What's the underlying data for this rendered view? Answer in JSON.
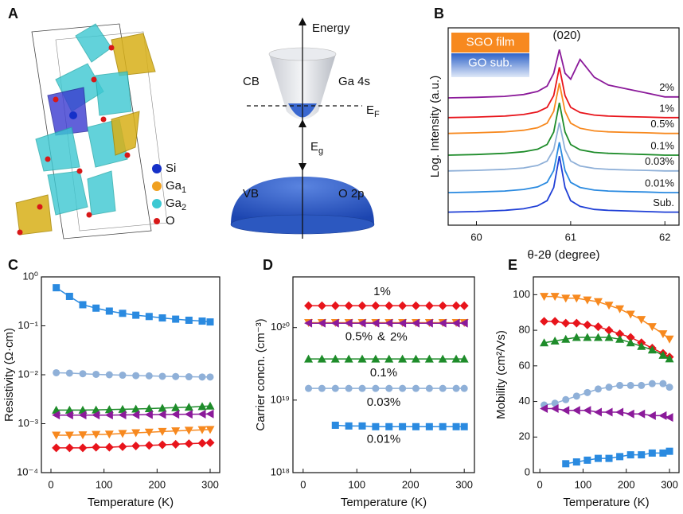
{
  "diagram": {
    "label": "A",
    "atoms": [
      {
        "text": "Si",
        "color": "#1530c8"
      },
      {
        "text": "Ga",
        "sub": "1",
        "color": "#f0a020"
      },
      {
        "text": "Ga",
        "sub": "2",
        "color": "#3cc8d2"
      },
      {
        "text": "O",
        "color": "#d81818"
      }
    ],
    "band": {
      "energy": "Energy",
      "cb": "CB",
      "cb_orbital": "Ga 4s",
      "fermi": {
        "text": "E",
        "sub": "F"
      },
      "gap": {
        "text": "E",
        "sub": "g"
      },
      "vb": "VB",
      "vb_orbital": "O 2p"
    }
  },
  "chart_data": [
    {
      "type": "line",
      "label": "B",
      "ylabel": "Log. Intensity (a.u.)",
      "xlabel": "θ-2θ (degree)",
      "annotation": "(020)",
      "legend": [
        {
          "name": "SGO film",
          "color": "#f7891f"
        },
        {
          "name": "GO sub.",
          "color": "#2f63c8"
        }
      ],
      "xlim": [
        59.7,
        62.15
      ],
      "xticks": [
        60,
        61,
        62
      ],
      "ylim": [
        0,
        10
      ],
      "x": [
        59.7,
        60.0,
        60.3,
        60.5,
        60.65,
        60.75,
        60.82,
        60.88,
        60.94,
        61.0,
        61.1,
        61.25,
        61.4,
        61.6,
        61.8,
        62.0,
        62.15
      ],
      "series": [
        {
          "name": "2%",
          "color": "#8b1a9a",
          "values": [
            6.45,
            6.48,
            6.53,
            6.62,
            6.78,
            7.05,
            7.7,
            8.9,
            7.7,
            7.4,
            8.4,
            7.5,
            7.1,
            6.9,
            6.7,
            6.5,
            6.5
          ]
        },
        {
          "name": "1%",
          "color": "#e8141b",
          "values": [
            5.45,
            5.48,
            5.53,
            5.61,
            5.74,
            5.97,
            6.57,
            8.0,
            6.57,
            5.97,
            5.71,
            5.58,
            5.53,
            5.5,
            5.48,
            5.45,
            5.45
          ]
        },
        {
          "name": "0.5%",
          "color": "#f7891f",
          "values": [
            4.65,
            4.68,
            4.73,
            4.81,
            4.94,
            5.17,
            5.77,
            7.2,
            5.77,
            5.17,
            4.91,
            4.78,
            4.73,
            4.7,
            4.68,
            4.65,
            4.65
          ]
        },
        {
          "name": "0.1%",
          "color": "#1e8c2a",
          "values": [
            3.55,
            3.58,
            3.64,
            3.72,
            3.85,
            4.09,
            4.72,
            6.2,
            4.72,
            4.09,
            3.82,
            3.69,
            3.64,
            3.61,
            3.58,
            3.55,
            3.55
          ]
        },
        {
          "name": "0.03%",
          "color": "#8fb0d8",
          "values": [
            2.75,
            2.78,
            2.83,
            2.9,
            3.03,
            3.25,
            3.83,
            5.2,
            3.83,
            3.25,
            3.0,
            2.88,
            2.83,
            2.8,
            2.78,
            2.75,
            2.75
          ]
        },
        {
          "name": "0.01%",
          "color": "#2a8ae0",
          "values": [
            1.65,
            1.68,
            1.73,
            1.81,
            1.94,
            2.17,
            2.77,
            4.2,
            2.77,
            2.17,
            1.91,
            1.78,
            1.73,
            1.7,
            1.68,
            1.65,
            1.65
          ]
        },
        {
          "name": "Sub.",
          "color": "#1f3fd6",
          "values": [
            0.66,
            0.69,
            0.75,
            0.83,
            0.98,
            1.24,
            1.91,
            3.5,
            1.91,
            1.24,
            0.95,
            0.8,
            0.75,
            0.72,
            0.69,
            0.66,
            0.66
          ]
        }
      ]
    },
    {
      "type": "line",
      "label": "C",
      "ylabel": "Resistivity (Ω·cm)",
      "xlabel": "Temperature (K)",
      "ylog": true,
      "xlim": [
        -18,
        318
      ],
      "xticks": [
        0,
        100,
        200,
        300
      ],
      "ylim": [
        0.0001,
        1
      ],
      "yticks": [
        {
          "value": 0.0001,
          "label": "10⁻⁴"
        },
        {
          "value": 0.001,
          "label": "10⁻³"
        },
        {
          "value": 0.01,
          "label": "10⁻²"
        },
        {
          "value": 0.1,
          "label": "10⁻¹"
        },
        {
          "value": 1,
          "label": "10⁰"
        }
      ],
      "x": [
        10,
        35,
        60,
        85,
        110,
        135,
        160,
        185,
        210,
        235,
        260,
        285,
        300
      ],
      "series": [
        {
          "color": "#2a8ae0",
          "marker": "square",
          "values": [
            0.6,
            0.4,
            0.27,
            0.23,
            0.2,
            0.18,
            0.165,
            0.155,
            0.145,
            0.137,
            0.13,
            0.125,
            0.12
          ]
        },
        {
          "color": "#8fb0d8",
          "marker": "circle",
          "values": [
            0.011,
            0.0108,
            0.0105,
            0.0102,
            0.01,
            0.0098,
            0.0096,
            0.0095,
            0.0093,
            0.0092,
            0.0091,
            0.009,
            0.009
          ]
        },
        {
          "color": "#1e8c2a",
          "marker": "up",
          "values": [
            0.0019,
            0.0019,
            0.0019,
            0.00192,
            0.00194,
            0.00197,
            0.002,
            0.00204,
            0.00208,
            0.00213,
            0.00218,
            0.00225,
            0.0023
          ]
        },
        {
          "color": "#8b1a9a",
          "marker": "left",
          "values": [
            0.0015,
            0.0015,
            0.0015,
            0.0015,
            0.0015,
            0.00151,
            0.00152,
            0.00153,
            0.00154,
            0.00155,
            0.00156,
            0.00157,
            0.00158
          ]
        },
        {
          "color": "#f7891f",
          "marker": "down",
          "values": [
            0.00058,
            0.00058,
            0.00059,
            0.0006,
            0.00061,
            0.00063,
            0.00065,
            0.00067,
            0.00069,
            0.00071,
            0.00073,
            0.00075,
            0.00076
          ]
        },
        {
          "color": "#e8141b",
          "marker": "diamond",
          "values": [
            0.00032,
            0.00032,
            0.00032,
            0.00033,
            0.00033,
            0.00034,
            0.00035,
            0.00036,
            0.00037,
            0.00038,
            0.00039,
            0.0004,
            0.00041
          ]
        }
      ]
    },
    {
      "type": "line",
      "label": "D",
      "ylabel": "Carrier concn. (cm⁻³)",
      "xlabel": "Temperature (K)",
      "ylog": true,
      "annotation": "&",
      "xlim": [
        -19,
        319
      ],
      "xticks": [
        0,
        100,
        200,
        300
      ],
      "ylim": [
        1e+18,
        5e+20
      ],
      "yticks": [
        {
          "value": 1e+18,
          "label": "10¹⁸"
        },
        {
          "value": 1e+19,
          "label": "10¹⁹"
        },
        {
          "value": 1e+20,
          "label": "10²⁰"
        }
      ],
      "x": [
        10,
        35,
        60,
        85,
        110,
        135,
        160,
        185,
        210,
        235,
        260,
        285,
        300
      ],
      "series": [
        {
          "name": "1%",
          "color": "#e8141b",
          "marker": "diamond",
          "values": [
            2e+20,
            2e+20,
            2e+20,
            2e+20,
            2e+20,
            2e+20,
            2e+20,
            2e+20,
            2e+20,
            2e+20,
            2e+20,
            2e+20,
            2e+20
          ]
        },
        {
          "name": "0.5%",
          "color": "#f7891f",
          "marker": "down",
          "values": [
            1.17e+20,
            1.17e+20,
            1.17e+20,
            1.17e+20,
            1.17e+20,
            1.17e+20,
            1.17e+20,
            1.17e+20,
            1.17e+20,
            1.17e+20,
            1.17e+20,
            1.17e+20,
            1.17e+20
          ]
        },
        {
          "name": "2%",
          "color": "#8b1a9a",
          "marker": "left",
          "values": [
            1.15e+20,
            1.15e+20,
            1.15e+20,
            1.15e+20,
            1.15e+20,
            1.15e+20,
            1.15e+20,
            1.15e+20,
            1.15e+20,
            1.15e+20,
            1.15e+20,
            1.15e+20,
            1.15e+20
          ]
        },
        {
          "name": "0.1%",
          "color": "#1e8c2a",
          "marker": "up",
          "values": [
            3.7e+19,
            3.7e+19,
            3.7e+19,
            3.7e+19,
            3.7e+19,
            3.7e+19,
            3.7e+19,
            3.7e+19,
            3.7e+19,
            3.7e+19,
            3.7e+19,
            3.7e+19,
            3.7e+19
          ]
        },
        {
          "name": "0.03%",
          "color": "#8fb0d8",
          "marker": "circle",
          "values": [
            1.45e+19,
            1.45e+19,
            1.45e+19,
            1.45e+19,
            1.45e+19,
            1.45e+19,
            1.45e+19,
            1.45e+19,
            1.45e+19,
            1.45e+19,
            1.45e+19,
            1.45e+19,
            1.45e+19
          ]
        },
        {
          "name": "0.01%",
          "color": "#2a8ae0",
          "marker": "square",
          "values": [
            null,
            null,
            4.5e+18,
            4.4e+18,
            4.4e+18,
            4.3e+18,
            4.3e+18,
            4.3e+18,
            4.3e+18,
            4.3e+18,
            4.3e+18,
            4.3e+18,
            4.3e+18
          ]
        }
      ]
    },
    {
      "type": "line",
      "label": "E",
      "ylabel": "Mobility (cm²/Vs)",
      "xlabel": "Temperature (K)",
      "xlim": [
        -15,
        322
      ],
      "xticks": [
        0,
        100,
        200,
        300
      ],
      "ylim": [
        0,
        110
      ],
      "yticks": [
        0,
        20,
        40,
        60,
        80,
        100
      ],
      "x": [
        10,
        35,
        60,
        85,
        110,
        135,
        160,
        185,
        210,
        235,
        260,
        285,
        300
      ],
      "series": [
        {
          "color": "#f7891f",
          "marker": "down",
          "values": [
            99,
            99,
            98,
            98,
            97,
            96,
            94,
            92,
            89,
            86,
            82,
            78,
            75
          ]
        },
        {
          "color": "#e8141b",
          "marker": "diamond",
          "values": [
            85,
            85,
            84,
            84,
            83,
            82,
            80,
            78,
            76,
            73,
            70,
            67,
            65
          ]
        },
        {
          "color": "#1e8c2a",
          "marker": "up",
          "values": [
            73,
            74,
            75,
            76,
            76,
            76,
            76,
            75,
            73,
            71,
            69,
            66,
            64
          ]
        },
        {
          "color": "#8fb0d8",
          "marker": "circle",
          "values": [
            38,
            39,
            41,
            43,
            45,
            47,
            48,
            49,
            49,
            49,
            50,
            50,
            48
          ]
        },
        {
          "color": "#8b1a9a",
          "marker": "left",
          "values": [
            36,
            36,
            35,
            35,
            35,
            34,
            34,
            34,
            33,
            33,
            32,
            32,
            31
          ]
        },
        {
          "color": "#2a8ae0",
          "marker": "square",
          "values": [
            null,
            null,
            5,
            6,
            7,
            8,
            8,
            9,
            10,
            10,
            11,
            11,
            12
          ]
        }
      ]
    }
  ]
}
